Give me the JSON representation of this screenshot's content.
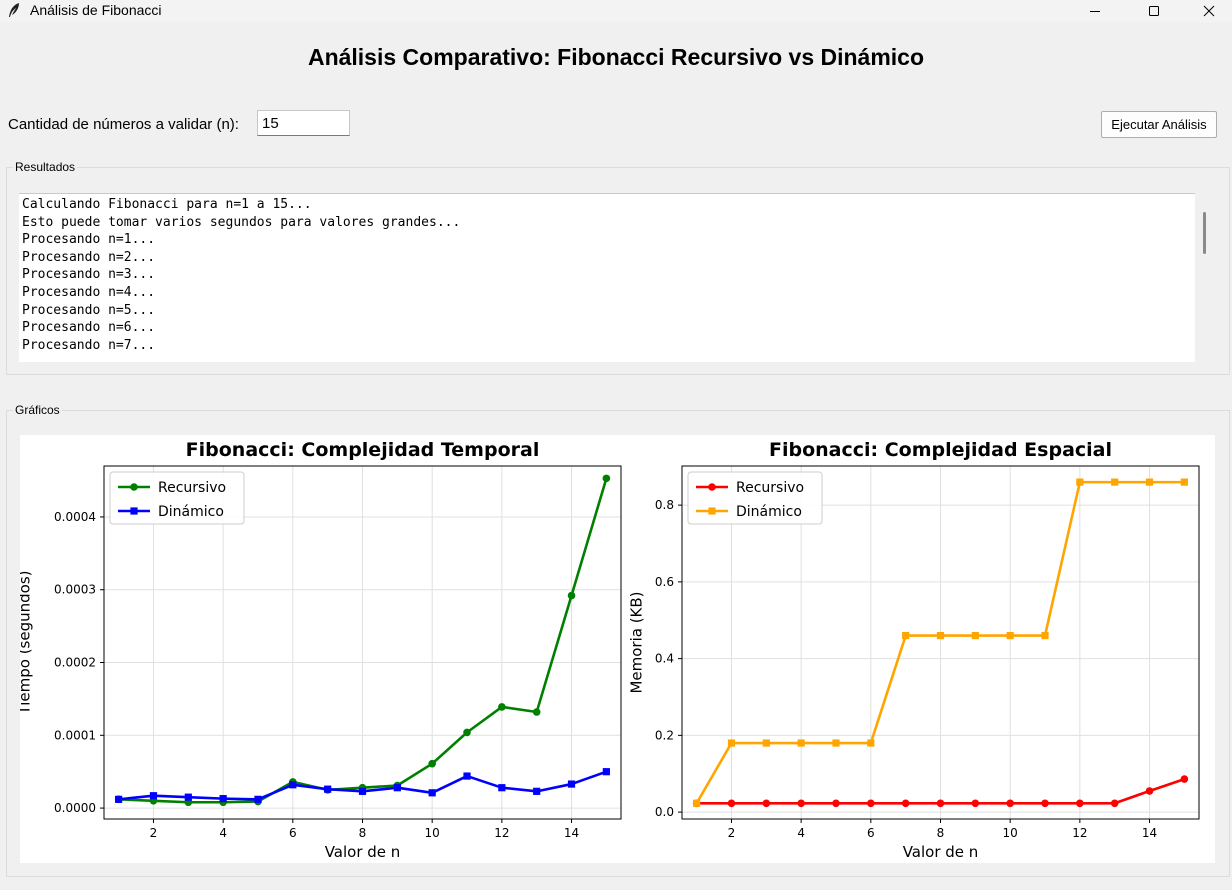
{
  "window": {
    "title": "Análisis de Fibonacci",
    "icon": "feather-icon"
  },
  "header": {
    "title": "Análisis Comparativo: Fibonacci Recursivo vs Dinámico"
  },
  "controls": {
    "n_label": "Cantidad de números a validar (n):",
    "n_value": "15",
    "run_button": "Ejecutar Análisis"
  },
  "results": {
    "legend": "Resultados",
    "lines": [
      "Calculando Fibonacci para n=1 a 15...",
      "Esto puede tomar varios segundos para valores grandes...",
      "",
      "Procesando n=1...",
      "Procesando n=2...",
      "Procesando n=3...",
      "Procesando n=4...",
      "Procesando n=5...",
      "Procesando n=6...",
      "Procesando n=7..."
    ]
  },
  "graphs": {
    "legend": "Gráficos"
  },
  "chart_data": [
    {
      "type": "line",
      "title": "Fibonacci: Complejidad Temporal",
      "xlabel": "Valor de n",
      "ylabel": "Tiempo (segundos)",
      "x": [
        1,
        2,
        3,
        4,
        5,
        6,
        7,
        8,
        9,
        10,
        11,
        12,
        13,
        14,
        15
      ],
      "xlim": [
        0.58,
        15.42
      ],
      "ylim": [
        -1.5e-05,
        0.00047
      ],
      "xticks": [
        2,
        4,
        6,
        8,
        10,
        12,
        14
      ],
      "yticks": [
        0.0,
        0.0001,
        0.0002,
        0.0003,
        0.0004
      ],
      "ytick_labels": [
        "0.0000",
        "0.0001",
        "0.0002",
        "0.0003",
        "0.0004"
      ],
      "grid": true,
      "legend_position": "upper-left",
      "series": [
        {
          "name": "Recursivo",
          "color": "#008000",
          "marker": "circle",
          "values": [
            1.2e-05,
            1e-05,
            8e-06,
            8e-06,
            9e-06,
            3.6e-05,
            2.5e-05,
            2.8e-05,
            3.1e-05,
            6.1e-05,
            0.000104,
            0.000139,
            0.000132,
            0.000292,
            0.000453
          ]
        },
        {
          "name": "Dinámico",
          "color": "#0000ff",
          "marker": "square",
          "values": [
            1.2e-05,
            1.7e-05,
            1.5e-05,
            1.3e-05,
            1.2e-05,
            3.2e-05,
            2.6e-05,
            2.3e-05,
            2.8e-05,
            2.1e-05,
            4.4e-05,
            2.8e-05,
            2.3e-05,
            3.3e-05,
            5e-05
          ]
        }
      ]
    },
    {
      "type": "line",
      "title": "Fibonacci: Complejidad Espacial",
      "xlabel": "Valor de n",
      "ylabel": "Memoria (KB)",
      "x": [
        1,
        2,
        3,
        4,
        5,
        6,
        7,
        8,
        9,
        10,
        11,
        12,
        13,
        14,
        15
      ],
      "xlim": [
        0.58,
        15.42
      ],
      "ylim": [
        -0.018,
        0.902
      ],
      "xticks": [
        2,
        4,
        6,
        8,
        10,
        12,
        14
      ],
      "yticks": [
        0.0,
        0.2,
        0.4,
        0.6,
        0.8
      ],
      "ytick_labels": [
        "0.0",
        "0.2",
        "0.4",
        "0.6",
        "0.8"
      ],
      "grid": true,
      "legend_position": "upper-left",
      "series": [
        {
          "name": "Recursivo",
          "color": "#ff0000",
          "marker": "circle",
          "values": [
            0.023,
            0.023,
            0.023,
            0.023,
            0.023,
            0.023,
            0.023,
            0.023,
            0.023,
            0.023,
            0.023,
            0.023,
            0.023,
            0.055,
            0.086
          ]
        },
        {
          "name": "Dinámico",
          "color": "#ffa500",
          "marker": "square",
          "values": [
            0.023,
            0.18,
            0.18,
            0.18,
            0.18,
            0.18,
            0.46,
            0.46,
            0.46,
            0.46,
            0.46,
            0.86,
            0.86,
            0.86,
            0.86
          ]
        }
      ]
    }
  ]
}
